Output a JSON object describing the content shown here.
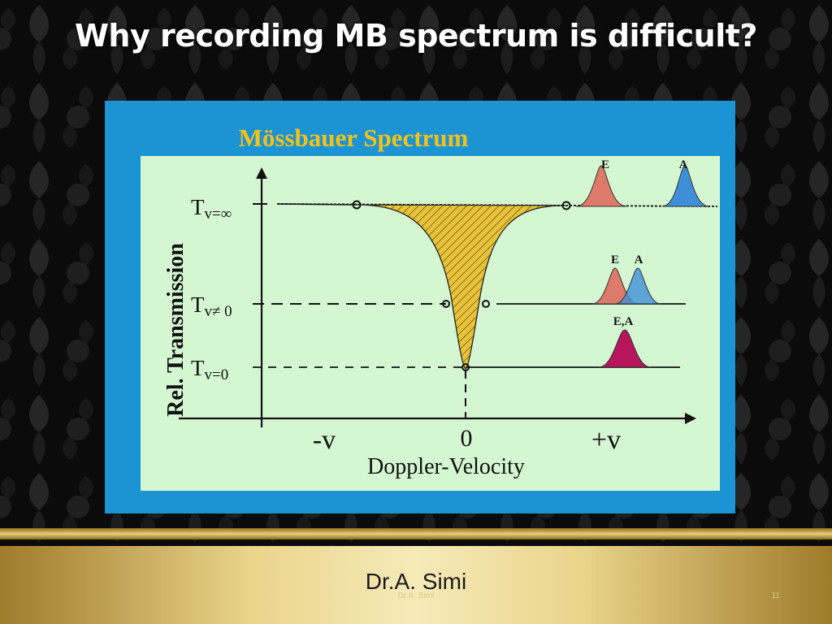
{
  "slide": {
    "title": "Why recording MB spectrum is difficult?",
    "author": "Dr.A. Simi",
    "author_faint": "Dr.A. Simi",
    "slide_number": "11"
  },
  "diagram": {
    "title": "Mössbauer Spectrum",
    "y_axis_label": "Rel. Transmission",
    "x_axis_label": "Doppler-Velocity",
    "x_ticks": [
      "-v",
      "0",
      "+v"
    ],
    "levels": [
      {
        "main": "T",
        "sub": "v=∞"
      },
      {
        "main": "T",
        "sub": "v≠ 0"
      },
      {
        "main": "T",
        "sub": "v=0"
      }
    ],
    "insets": [
      {
        "labels": [
          "E",
          "A"
        ]
      },
      {
        "labels": [
          "E",
          "A"
        ]
      },
      {
        "labels": [
          "E,A"
        ]
      }
    ]
  },
  "colors": {
    "frame": "#1c94d3",
    "panel": "#d4f7d2",
    "title_text": "#f2c21b",
    "fill": "#e8c33a",
    "emission_peak": "#dd7a6a",
    "absorption_peak": "#3f8fd8",
    "overlap_peak": "#b8165c"
  }
}
